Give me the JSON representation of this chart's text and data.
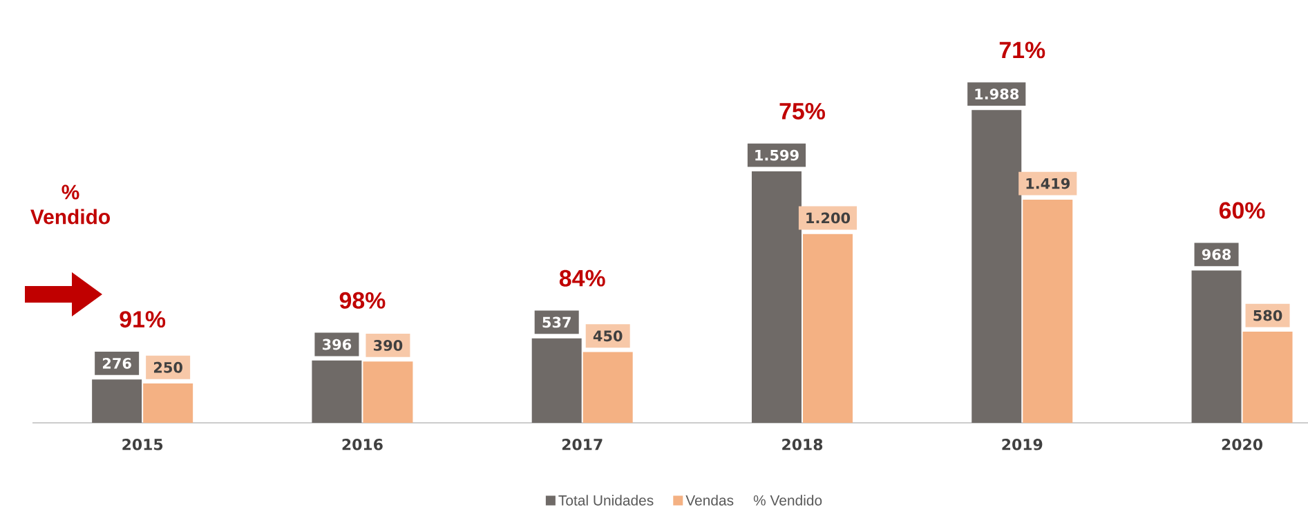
{
  "chart_data": {
    "type": "bar",
    "categories": [
      "2015",
      "2016",
      "2017",
      "2018",
      "2019",
      "2020"
    ],
    "series": [
      {
        "name": "Total Unidades",
        "color": "#6f6a67",
        "values": [
          276,
          396,
          537,
          1599,
          1988,
          968
        ],
        "value_labels": [
          "276",
          "396",
          "537",
          "1.599",
          "1.988",
          "968"
        ]
      },
      {
        "name": "Vendas",
        "color": "#f4b183",
        "values": [
          250,
          390,
          450,
          1200,
          1419,
          580
        ],
        "value_labels": [
          "250",
          "390",
          "450",
          "1.200",
          "1.419",
          "580"
        ]
      }
    ],
    "legend": "bottom",
    "annotations": [
      "91%",
      "98%",
      "84%",
      "75%",
      "71%",
      "60%",
      "% Vendido",
      "% Vendido"
    ]
  }
}
